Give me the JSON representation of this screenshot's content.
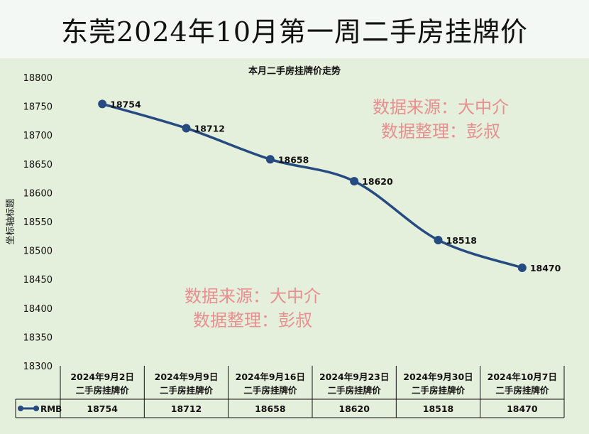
{
  "page_title": "东莞2024年10月第一周二手房挂牌价",
  "watermarks": [
    {
      "line1": "数据来源：大中介",
      "line2": "数据整理：彭叔"
    },
    {
      "line1": "数据来源：大中介",
      "line2": "数据整理：彭叔"
    }
  ],
  "colors": {
    "series": "#264b80",
    "background": "#e4efdc",
    "watermark": "#e98f8f"
  },
  "chart_data": {
    "type": "line",
    "title": "本月二手房挂牌价走势",
    "ylabel": "坐标轴标题",
    "xlabel": "",
    "ylim": [
      18300,
      18800
    ],
    "ytick_step": 50,
    "smooth": true,
    "categories": [
      [
        "2024年9月2日",
        "二手房挂牌价"
      ],
      [
        "2024年9月9日",
        "二手房挂牌价"
      ],
      [
        "2024年9月16日",
        "二手房挂牌价"
      ],
      [
        "2024年9月23日",
        "二手房挂牌价"
      ],
      [
        "2024年9月30日",
        "二手房挂牌价"
      ],
      [
        "2024年10月7日",
        "二手房挂牌价"
      ]
    ],
    "series": [
      {
        "name": "RMB",
        "values": [
          18754,
          18712,
          18658,
          18620,
          18518,
          18470
        ]
      }
    ],
    "data_table": true,
    "legend": "data-table"
  }
}
